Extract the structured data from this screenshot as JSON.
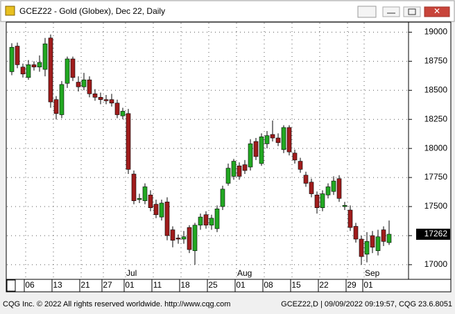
{
  "window": {
    "title": "GCEZ22 - Gold (Globex), Dec 22, Daily",
    "footer_left": "CQG Inc. © 2022 All rights reserved worldwide. http://www.cqg.com",
    "footer_right": "GCEZ22,D | 09/09/2022 09:19:57, CQG 23.6.8051"
  },
  "chart_data": {
    "type": "candlestick",
    "categories": [
      null,
      null,
      null,
      "06",
      null,
      null,
      null,
      null,
      "13",
      null,
      null,
      null,
      null,
      "21",
      null,
      null,
      null,
      "27",
      null,
      null,
      null,
      "01",
      null,
      null,
      null,
      null,
      "11",
      null,
      null,
      null,
      null,
      "18",
      null,
      null,
      null,
      null,
      "25",
      null,
      null,
      null,
      null,
      "01",
      null,
      null,
      null,
      null,
      "08",
      null,
      null,
      null,
      null,
      "15",
      null,
      null,
      null,
      null,
      "22",
      null,
      null,
      null,
      null,
      "29",
      null,
      null,
      "01",
      null,
      null,
      null,
      null
    ],
    "months": [
      null,
      null,
      null,
      null,
      null,
      null,
      null,
      null,
      null,
      null,
      null,
      null,
      null,
      null,
      null,
      null,
      null,
      null,
      null,
      null,
      null,
      "Jul",
      null,
      null,
      null,
      null,
      null,
      null,
      null,
      null,
      null,
      null,
      null,
      null,
      null,
      null,
      null,
      null,
      null,
      null,
      null,
      "Aug",
      null,
      null,
      null,
      null,
      null,
      null,
      null,
      null,
      null,
      null,
      null,
      null,
      null,
      null,
      null,
      null,
      null,
      null,
      null,
      null,
      null,
      null,
      "Sep",
      null,
      null,
      null,
      null
    ],
    "open": [
      18660,
      18880,
      18700,
      18610,
      18720,
      18700,
      18680,
      18950,
      18420,
      18290,
      18560,
      18770,
      18570,
      18530,
      18590,
      18470,
      18440,
      18420,
      18420,
      18390,
      18280,
      18300,
      17780,
      17560,
      17550,
      17600,
      17520,
      17410,
      17540,
      17300,
      17230,
      17220,
      17320,
      17120,
      17340,
      17430,
      17340,
      17310,
      17500,
      17700,
      17760,
      17850,
      17860,
      17840,
      18060,
      17870,
      18040,
      18120,
      18090,
      17990,
      18180,
      17960,
      17890,
      17770,
      17710,
      17600,
      17490,
      17600,
      17630,
      17740,
      17500,
      17470,
      17330,
      17220,
      17090,
      17250,
      17120,
      17300,
      17190
    ],
    "high": [
      18905,
      18910,
      18730,
      18760,
      18750,
      18800,
      18950,
      18980,
      18450,
      18580,
      18790,
      18790,
      18620,
      18650,
      18620,
      18510,
      18480,
      18460,
      18470,
      18420,
      18350,
      18340,
      17810,
      17610,
      17700,
      17640,
      17560,
      17560,
      17580,
      17330,
      17260,
      17290,
      17340,
      17360,
      17440,
      17460,
      17430,
      17510,
      17680,
      17870,
      17910,
      17880,
      17900,
      18080,
      18090,
      18130,
      18150,
      18240,
      18130,
      18200,
      18200,
      17990,
      17920,
      17800,
      17740,
      17630,
      17640,
      17700,
      17760,
      17770,
      17540,
      17510,
      17360,
      17250,
      17280,
      17290,
      17300,
      17330,
      17380
    ],
    "low": [
      18630,
      18690,
      18610,
      18590,
      18670,
      18660,
      18620,
      18350,
      18250,
      18260,
      18520,
      18580,
      18490,
      18500,
      18440,
      18410,
      18380,
      18380,
      18360,
      18260,
      18250,
      17780,
      17520,
      17530,
      17520,
      17460,
      17400,
      17380,
      17210,
      17150,
      17180,
      17180,
      17100,
      17000,
      17300,
      17310,
      17300,
      17280,
      17470,
      17680,
      17730,
      17730,
      17780,
      17810,
      17900,
      17850,
      18000,
      18060,
      18020,
      17960,
      17940,
      17870,
      17790,
      17670,
      17580,
      17440,
      17460,
      17570,
      17600,
      17540,
      17470,
      17290,
      17190,
      17000,
      17020,
      17100,
      17080,
      17160,
      17170
    ],
    "close": [
      18870,
      18720,
      18640,
      18720,
      18700,
      18740,
      18900,
      18400,
      18300,
      18550,
      18770,
      18610,
      18530,
      18590,
      18470,
      18440,
      18420,
      18410,
      18390,
      18290,
      18320,
      17820,
      17550,
      17570,
      17670,
      17490,
      17430,
      17530,
      17250,
      17210,
      17220,
      17240,
      17130,
      17340,
      17410,
      17340,
      17400,
      17480,
      17650,
      17830,
      17890,
      17760,
      17810,
      18040,
      17930,
      18100,
      18110,
      18090,
      18050,
      18180,
      17970,
      17900,
      17820,
      17700,
      17610,
      17490,
      17610,
      17670,
      17720,
      17570,
      17510,
      17320,
      17220,
      17070,
      17200,
      17150,
      17240,
      17200,
      17262
    ],
    "up_color": "#22a822",
    "down_color": "#a01c1c",
    "ylim": [
      16880,
      19080
    ],
    "yticks": [
      17000,
      17250,
      17500,
      17750,
      18000,
      18250,
      18500,
      18750,
      19000
    ],
    "grid": true
  }
}
